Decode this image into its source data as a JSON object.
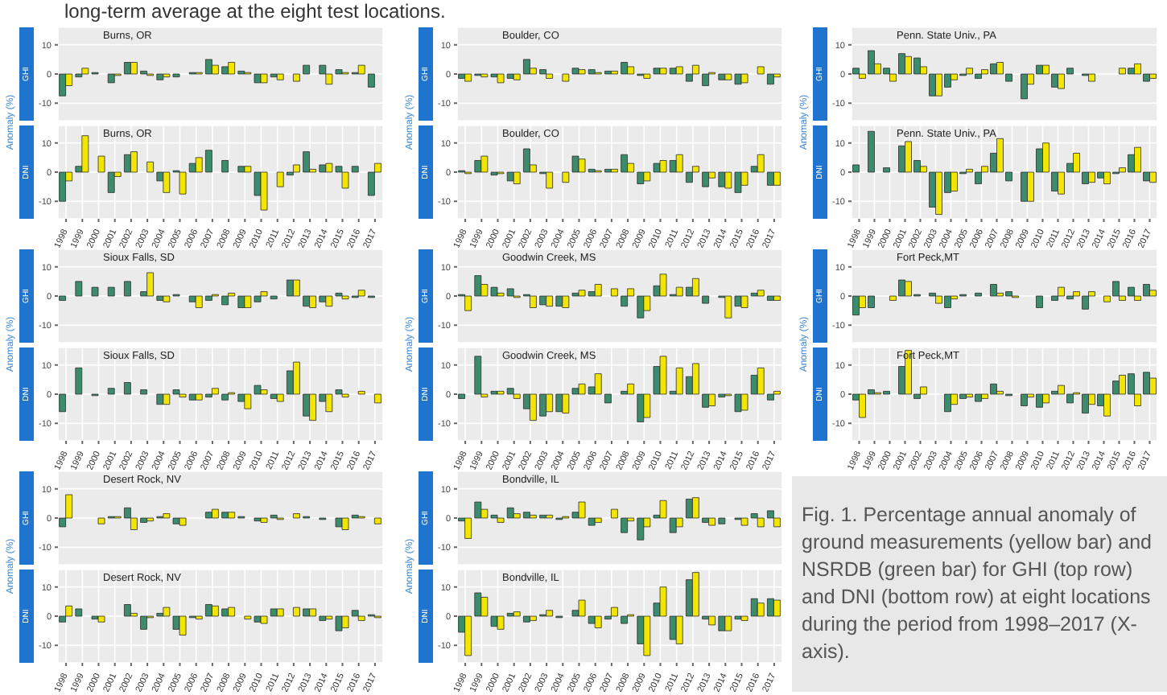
{
  "chart_data": [
    {
      "type": "bar",
      "title": "Burns, OR",
      "subtitle": "GHI",
      "ylabel": "Anomaly (%)",
      "annotations": [
        "long-term average at the eight test locations."
      ],
      "categories": [
        "1998",
        "1999",
        "2000",
        "2001",
        "2002",
        "2003",
        "2004",
        "2005",
        "2006",
        "2007",
        "2008",
        "2009",
        "2010",
        "2011",
        "2012",
        "2013",
        "2014",
        "2015",
        "2016",
        "2017"
      ],
      "series": [
        {
          "color": "#3d8b6d",
          "values": [
            -7.5,
            -1,
            0.5,
            -3,
            4,
            1,
            -2,
            -1,
            0.5,
            5,
            2.5,
            1,
            -3,
            -1,
            0,
            3,
            3,
            1.5,
            0.5,
            -4.5
          ]
        },
        {
          "color": "#f2e600",
          "values": [
            -4,
            2,
            0,
            -0.5,
            4,
            -0.5,
            -1,
            0,
            0.5,
            3,
            4,
            0.5,
            -3,
            -2,
            -2.5,
            0,
            -3.5,
            0.5,
            3,
            0
          ]
        }
      ],
      "ylim": [
        -16,
        16
      ],
      "yticks": [
        -10,
        0,
        10
      ],
      "grid": true,
      "tick_labels": "y"
    },
    {
      "type": "bar",
      "title": "Burns, OR",
      "subtitle": "DNI",
      "categories": [
        "1998",
        "1999",
        "2000",
        "2001",
        "2002",
        "2003",
        "2004",
        "2005",
        "2006",
        "2007",
        "2008",
        "2009",
        "2010",
        "2011",
        "2012",
        "2013",
        "2014",
        "2015",
        "2016",
        "2017"
      ],
      "series": [
        {
          "color": "#3d8b6d",
          "values": [
            -10,
            2,
            0,
            -7,
            6,
            0,
            -3,
            0.5,
            3,
            7.5,
            4,
            2,
            -8,
            0,
            -1,
            7,
            2.5,
            2,
            2,
            -8
          ]
        },
        {
          "color": "#f2e600",
          "values": [
            -3,
            12.5,
            5.5,
            -1.5,
            7,
            3.5,
            -7,
            -7.5,
            5,
            0,
            0,
            2,
            -13,
            -5,
            2.5,
            1,
            3,
            -5.5,
            0,
            3
          ]
        }
      ],
      "ylim": [
        -16,
        16
      ],
      "yticks": [
        -10,
        0,
        10
      ],
      "grid": true
    },
    {
      "type": "bar",
      "title": "Boulder, CO",
      "subtitle": "GHI",
      "ylabel": "Anomaly (%)",
      "categories": [
        "1998",
        "1999",
        "2000",
        "2001",
        "2002",
        "2003",
        "2004",
        "2005",
        "2006",
        "2007",
        "2008",
        "2009",
        "2010",
        "2011",
        "2012",
        "2013",
        "2014",
        "2015",
        "2016",
        "2017"
      ],
      "series": [
        {
          "color": "#3d8b6d",
          "values": [
            -1.5,
            -0.5,
            -1,
            -1.5,
            5,
            1.5,
            0,
            2,
            1.5,
            1,
            4,
            -0.5,
            2,
            2,
            -2.5,
            -4,
            -2,
            -3.5,
            0,
            -3.5
          ]
        },
        {
          "color": "#f2e600",
          "values": [
            -2.5,
            -1,
            -3,
            -2,
            2,
            -1.5,
            -2.5,
            1.5,
            0.5,
            1,
            2.5,
            -1.5,
            2,
            2.5,
            3,
            0.5,
            -2,
            -3,
            2.5,
            -1
          ]
        }
      ],
      "ylim": [
        -16,
        16
      ],
      "yticks": [
        -10,
        0,
        10
      ],
      "grid": true,
      "tick_labels": "y"
    },
    {
      "type": "bar",
      "title": "Boulder, CO",
      "subtitle": "DNI",
      "categories": [
        "1998",
        "1999",
        "2000",
        "2001",
        "2002",
        "2003",
        "2004",
        "2005",
        "2006",
        "2007",
        "2008",
        "2009",
        "2010",
        "2011",
        "2012",
        "2013",
        "2014",
        "2015",
        "2016",
        "2017"
      ],
      "series": [
        {
          "color": "#3d8b6d",
          "values": [
            0.5,
            4,
            -1,
            -3,
            8,
            -0.5,
            0,
            5.5,
            1,
            1,
            6,
            -4,
            3,
            4,
            -3.5,
            -5,
            -5,
            -7,
            2,
            -4.5
          ]
        },
        {
          "color": "#f2e600",
          "values": [
            -0.5,
            5.5,
            -0.5,
            -4,
            2.5,
            -5.5,
            -3.5,
            4.5,
            0.5,
            1,
            3,
            -3,
            4,
            6,
            2,
            -2,
            -5.5,
            -4.5,
            6,
            -4.5
          ]
        }
      ],
      "ylim": [
        -16,
        16
      ],
      "yticks": [
        -10,
        0,
        10
      ],
      "grid": true
    },
    {
      "type": "bar",
      "title": "Penn. State Univ., PA",
      "subtitle": "GHI",
      "ylabel": "Anomaly (%)",
      "categories": [
        "1998",
        "1999",
        "2000",
        "2001",
        "2002",
        "2003",
        "2004",
        "2005",
        "2006",
        "2007",
        "2008",
        "2009",
        "2010",
        "2011",
        "2012",
        "2013",
        "2014",
        "2015",
        "2016",
        "2017"
      ],
      "series": [
        {
          "color": "#3d8b6d",
          "values": [
            2,
            8,
            2,
            7,
            5.5,
            -7.5,
            -4.5,
            -0.5,
            -1.5,
            3.5,
            -2.5,
            -8.5,
            3,
            -4.5,
            2,
            -0.5,
            0,
            0,
            2,
            -2.5
          ]
        },
        {
          "color": "#f2e600",
          "values": [
            -1.5,
            3.5,
            -2.5,
            6,
            2.5,
            -7.5,
            -2,
            2,
            1.5,
            4,
            0,
            -3.5,
            3,
            -5,
            0,
            -2.5,
            0,
            2,
            3.5,
            -1.5
          ]
        }
      ],
      "ylim": [
        -16,
        16
      ],
      "yticks": [
        -10,
        0,
        10
      ],
      "grid": true,
      "tick_labels": "y"
    },
    {
      "type": "bar",
      "title": "Penn. State Univ., PA",
      "subtitle": "DNI",
      "categories": [
        "1998",
        "1999",
        "2000",
        "2001",
        "2002",
        "2003",
        "2004",
        "2005",
        "2006",
        "2007",
        "2008",
        "2009",
        "2010",
        "2011",
        "2012",
        "2013",
        "2014",
        "2015",
        "2016",
        "2017"
      ],
      "series": [
        {
          "color": "#3d8b6d",
          "values": [
            2.5,
            14,
            1.5,
            9,
            4,
            -12,
            -7,
            -0.5,
            -4,
            6.5,
            -3,
            -10,
            8,
            -6.5,
            3,
            -4,
            -2,
            -0.5,
            6,
            -3
          ]
        },
        {
          "color": "#f2e600",
          "values": [
            0,
            null,
            null,
            10.5,
            2,
            -14.5,
            -6.5,
            1,
            2,
            11.5,
            0,
            -10,
            10,
            -7.5,
            6.5,
            -3.5,
            -4,
            1.5,
            8.5,
            -3.5
          ]
        }
      ],
      "ylim": [
        -16,
        16
      ],
      "yticks": [
        -10,
        0,
        10
      ],
      "grid": true
    },
    {
      "type": "bar",
      "title": "Sioux Falls, SD",
      "subtitle": "GHI",
      "ylabel": "Anomaly (%)",
      "categories": [
        "1998",
        "1999",
        "2000",
        "2001",
        "2002",
        "2003",
        "2004",
        "2005",
        "2006",
        "2007",
        "2008",
        "2009",
        "2010",
        "2011",
        "2012",
        "2013",
        "2014",
        "2015",
        "2016",
        "2017"
      ],
      "series": [
        {
          "color": "#3d8b6d",
          "values": [
            -1.5,
            5,
            3,
            3,
            5,
            1.5,
            -1.5,
            0.5,
            -2,
            -1.5,
            -3,
            -4,
            -2,
            -1,
            5.5,
            -3.5,
            -2,
            1,
            -0.5,
            -0.5
          ]
        },
        {
          "color": "#f2e600",
          "values": [
            null,
            null,
            null,
            null,
            null,
            8,
            -2,
            0,
            -4,
            0.5,
            1,
            -4,
            1.5,
            0,
            5.5,
            -4,
            -3.5,
            -1,
            2,
            0
          ]
        }
      ],
      "ylim": [
        -16,
        16
      ],
      "yticks": [
        -10,
        0,
        10
      ],
      "grid": true,
      "tick_labels": "y"
    },
    {
      "type": "bar",
      "title": "Sioux Falls, SD",
      "subtitle": "DNI",
      "categories": [
        "1998",
        "1999",
        "2000",
        "2001",
        "2002",
        "2003",
        "2004",
        "2005",
        "2006",
        "2007",
        "2008",
        "2009",
        "2010",
        "2011",
        "2012",
        "2013",
        "2014",
        "2015",
        "2016",
        "2017"
      ],
      "series": [
        {
          "color": "#3d8b6d",
          "values": [
            -6,
            9,
            -0.5,
            2,
            4,
            1.5,
            -3.5,
            1.5,
            -2,
            -1,
            -2,
            -2.5,
            3,
            -1.5,
            8,
            -7.5,
            -2.5,
            1.5,
            0,
            0
          ]
        },
        {
          "color": "#f2e600",
          "values": [
            null,
            null,
            null,
            null,
            null,
            null,
            -3.5,
            -1,
            -2,
            2,
            0.5,
            -5,
            1.5,
            -2.5,
            11,
            -9,
            -6,
            -1,
            1,
            -3
          ]
        }
      ],
      "ylim": [
        -16,
        16
      ],
      "yticks": [
        -10,
        0,
        10
      ],
      "grid": true
    },
    {
      "type": "bar",
      "title": "Goodwin Creek, MS",
      "subtitle": "GHI",
      "ylabel": "Anomaly (%)",
      "categories": [
        "1998",
        "1999",
        "2000",
        "2001",
        "2002",
        "2003",
        "2004",
        "2005",
        "2006",
        "2007",
        "2008",
        "2009",
        "2010",
        "2011",
        "2012",
        "2013",
        "2014",
        "2015",
        "2016",
        "2017"
      ],
      "series": [
        {
          "color": "#3d8b6d",
          "values": [
            0.5,
            7,
            3,
            2.5,
            0.5,
            -3,
            -3.5,
            1,
            1.5,
            0,
            -3.5,
            -7.5,
            3.5,
            0.5,
            3,
            -2.5,
            -0.5,
            -3.5,
            1,
            -1.5
          ]
        },
        {
          "color": "#f2e600",
          "values": [
            -5,
            4,
            1,
            -0.5,
            -4,
            -3.5,
            -4,
            2,
            4,
            2.5,
            2.5,
            -5,
            7.5,
            3,
            6,
            0,
            -7.5,
            -4,
            2,
            -1.5
          ]
        }
      ],
      "ylim": [
        -16,
        16
      ],
      "yticks": [
        -10,
        0,
        10
      ],
      "grid": true,
      "tick_labels": "y"
    },
    {
      "type": "bar",
      "title": "Goodwin Creek, MS",
      "subtitle": "DNI",
      "categories": [
        "1998",
        "1999",
        "2000",
        "2001",
        "2002",
        "2003",
        "2004",
        "2005",
        "2006",
        "2007",
        "2008",
        "2009",
        "2010",
        "2011",
        "2012",
        "2013",
        "2014",
        "2015",
        "2016",
        "2017"
      ],
      "series": [
        {
          "color": "#3d8b6d",
          "values": [
            -1.5,
            13,
            1,
            2,
            -5,
            -7.5,
            -6,
            2,
            2.5,
            -3,
            1,
            -9.5,
            9.5,
            1,
            6,
            -4.5,
            -1,
            -6,
            6.5,
            -2
          ]
        },
        {
          "color": "#f2e600",
          "values": [
            null,
            -1,
            1,
            -1.5,
            -9,
            -6,
            -6.5,
            3.5,
            7,
            0,
            3.5,
            -8,
            13,
            9,
            10.5,
            -4,
            -0.5,
            -5.5,
            9,
            1
          ]
        }
      ],
      "ylim": [
        -16,
        16
      ],
      "yticks": [
        -10,
        0,
        10
      ],
      "grid": true
    },
    {
      "type": "bar",
      "title": "Fort Peck,MT",
      "subtitle": "GHI",
      "ylabel": "Anomaly (%)",
      "categories": [
        "1998",
        "1999",
        "2000",
        "2001",
        "2002",
        "2003",
        "2004",
        "2005",
        "2006",
        "2007",
        "2008",
        "2009",
        "2010",
        "2011",
        "2012",
        "2013",
        "2014",
        "2015",
        "2016",
        "2017"
      ],
      "series": [
        {
          "color": "#3d8b6d",
          "values": [
            -6.5,
            -4,
            0,
            5.5,
            0.5,
            1,
            -4,
            0.5,
            1,
            4,
            1.5,
            0,
            -4,
            -1.5,
            -1,
            -4.5,
            0,
            5,
            3,
            4
          ]
        },
        {
          "color": "#f2e600",
          "values": [
            -4,
            0,
            -1.5,
            5,
            0,
            -2.5,
            -1,
            0,
            0,
            1,
            -0.5,
            0,
            0,
            3,
            1.5,
            1.5,
            -2,
            -1.5,
            -1.5,
            2
          ]
        }
      ],
      "ylim": [
        -16,
        16
      ],
      "yticks": [
        -10,
        0,
        10
      ],
      "grid": true,
      "tick_labels": "y"
    },
    {
      "type": "bar",
      "title": "Fort Peck,MT",
      "subtitle": "DNI",
      "categories": [
        "1998",
        "1999",
        "2000",
        "2001",
        "2002",
        "2003",
        "2004",
        "2005",
        "2006",
        "2007",
        "2008",
        "2009",
        "2010",
        "2011",
        "2012",
        "2013",
        "2014",
        "2015",
        "2016",
        "2017"
      ],
      "series": [
        {
          "color": "#3d8b6d",
          "values": [
            -2,
            1.5,
            1,
            9.5,
            -1.5,
            0,
            -6,
            -1.5,
            -2.5,
            3.5,
            -0.5,
            -4,
            -4.5,
            1,
            -3,
            -6.5,
            -4,
            4.5,
            7,
            7.5
          ]
        },
        {
          "color": "#f2e600",
          "values": [
            -8,
            0.5,
            0,
            15,
            2.5,
            0,
            -3.5,
            -1,
            -1.5,
            1,
            0,
            -1,
            -3,
            3,
            0.5,
            -3.5,
            -7.5,
            6.5,
            -4,
            5.5
          ]
        }
      ],
      "ylim": [
        -16,
        16
      ],
      "yticks": [
        -10,
        0,
        10
      ],
      "grid": true
    },
    {
      "type": "bar",
      "title": "Desert Rock, NV",
      "subtitle": "GHI",
      "ylabel": "Anomaly (%)",
      "categories": [
        "1998",
        "1999",
        "2000",
        "2001",
        "2002",
        "2003",
        "2004",
        "2005",
        "2006",
        "2007",
        "2008",
        "2009",
        "2010",
        "2011",
        "2012",
        "2013",
        "2014",
        "2015",
        "2016",
        "2017"
      ],
      "series": [
        {
          "color": "#3d8b6d",
          "values": [
            -3,
            0,
            0,
            0.5,
            3.5,
            -1.5,
            0.5,
            -2,
            0,
            2,
            2,
            0.5,
            -1,
            1,
            0,
            0.5,
            -0.5,
            -3,
            1,
            0
          ]
        },
        {
          "color": "#f2e600",
          "values": [
            8,
            0,
            -2,
            0.5,
            -4,
            -1,
            1.5,
            -2.5,
            0,
            3,
            2,
            0,
            -1.5,
            -0.5,
            1.5,
            0,
            0,
            -4,
            0.5,
            -2
          ]
        }
      ],
      "ylim": [
        -16,
        16
      ],
      "yticks": [
        -10,
        0,
        10
      ],
      "grid": true,
      "tick_labels": "y"
    },
    {
      "type": "bar",
      "title": "Desert Rock, NV",
      "subtitle": "DNI",
      "categories": [
        "1998",
        "1999",
        "2000",
        "2001",
        "2002",
        "2003",
        "2004",
        "2005",
        "2006",
        "2007",
        "2008",
        "2009",
        "2010",
        "2011",
        "2012",
        "2013",
        "2014",
        "2015",
        "2016",
        "2017"
      ],
      "series": [
        {
          "color": "#3d8b6d",
          "values": [
            -2,
            2.5,
            -1,
            0,
            4,
            -4.5,
            1,
            -4.5,
            -0.5,
            4,
            2.5,
            0,
            -2,
            2.5,
            0,
            2.5,
            -1.5,
            -5,
            2,
            0.5
          ]
        },
        {
          "color": "#f2e600",
          "values": [
            3.5,
            null,
            -2,
            0,
            1,
            -0.5,
            3,
            -6.5,
            -1,
            3.5,
            3,
            -1,
            -2.5,
            2.5,
            3,
            2.5,
            -1,
            -4,
            -1.5,
            -0.5
          ]
        }
      ],
      "ylim": [
        -16,
        16
      ],
      "yticks": [
        -10,
        0,
        10
      ],
      "grid": true
    },
    {
      "type": "bar",
      "title": "Bondville, IL",
      "subtitle": "GHI",
      "ylabel": "Anomaly (%)",
      "categories": [
        "1998",
        "1999",
        "2000",
        "2001",
        "2002",
        "2003",
        "2004",
        "2005",
        "2006",
        "2007",
        "2008",
        "2009",
        "2010",
        "2011",
        "2012",
        "2013",
        "2014",
        "2015",
        "2016",
        "2017"
      ],
      "series": [
        {
          "color": "#3d8b6d",
          "values": [
            -1,
            5.5,
            1,
            3.5,
            2,
            1,
            -0.5,
            2,
            -2.5,
            0,
            -5,
            -7.5,
            1,
            -5,
            6.5,
            -1.5,
            -2,
            -0.5,
            1.5,
            2.5
          ]
        },
        {
          "color": "#f2e600",
          "values": [
            -7,
            3,
            -1.5,
            1.5,
            1,
            1,
            0.5,
            5.5,
            -1.5,
            3,
            -1,
            -3,
            6,
            -3,
            7,
            -2.5,
            0,
            -2.5,
            -3,
            -3
          ]
        }
      ],
      "ylim": [
        -16,
        16
      ],
      "yticks": [
        -10,
        0,
        10
      ],
      "grid": true,
      "tick_labels": "y"
    },
    {
      "type": "bar",
      "title": "Bondville, IL",
      "subtitle": "DNI",
      "categories": [
        "1998",
        "1999",
        "2000",
        "2001",
        "2002",
        "2003",
        "2004",
        "2005",
        "2006",
        "2007",
        "2008",
        "2009",
        "2010",
        "2011",
        "2012",
        "2013",
        "2014",
        "2015",
        "2016",
        "2017"
      ],
      "series": [
        {
          "color": "#3d8b6d",
          "values": [
            -5.5,
            8,
            -3.5,
            1,
            -2,
            0.5,
            -0.5,
            2,
            -2.5,
            -1,
            -2.5,
            -9.5,
            4.5,
            -8,
            12.5,
            -1,
            -5,
            -1,
            6,
            6
          ]
        },
        {
          "color": "#f2e600",
          "values": [
            -13.5,
            6.5,
            -4.5,
            1.5,
            -1.5,
            2,
            0,
            5.5,
            -4,
            3,
            0.5,
            -13.5,
            10,
            -9.5,
            15,
            -3,
            -5,
            -1.5,
            4.5,
            5.5
          ]
        }
      ],
      "ylim": [
        -16,
        16
      ],
      "yticks": [
        -10,
        0,
        10
      ],
      "grid": true
    },
    {
      "type": "other",
      "annotations": [
        "Fig. 1. Percentage annual anomaly of ground measurements (yellow bar) and NSRDB (green bar) for GHI (top row) and DNI (bottom row) at eight locations during the period from 1998–2017 (X-axis)."
      ]
    }
  ]
}
